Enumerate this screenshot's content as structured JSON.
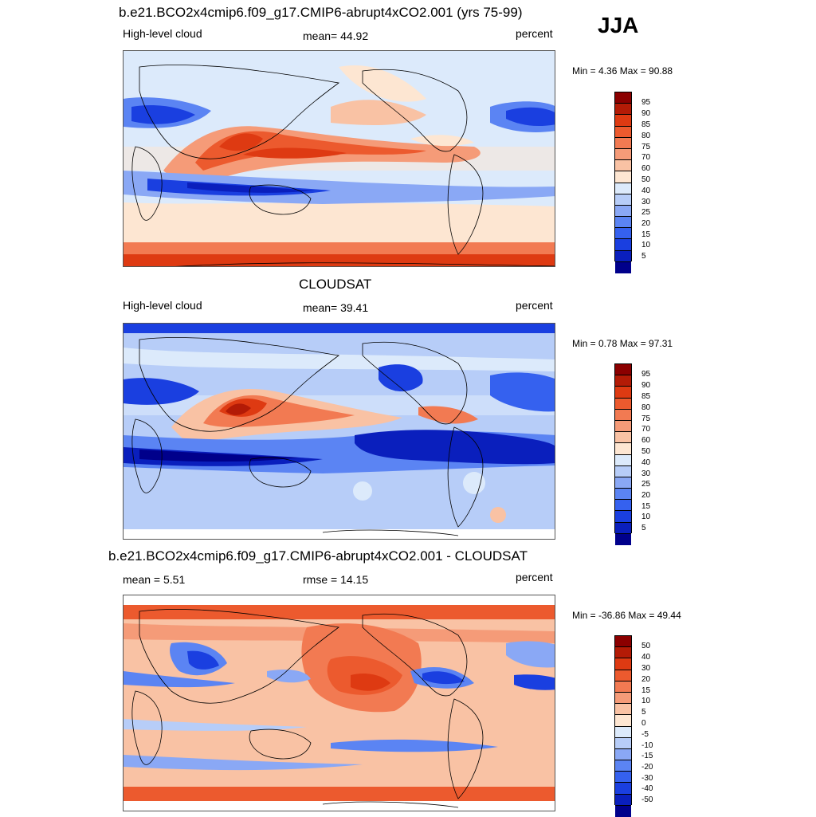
{
  "season": "JJA",
  "colors": {
    "c5": "#00008b",
    "c10": "#0a1fbd",
    "c15": "#1a3fe0",
    "c20": "#3561ef",
    "c25": "#5b84f3",
    "c30": "#8aa8f5",
    "c40": "#b7cdf8",
    "c50": "#dceafb",
    "c60": "#fde6d2",
    "c70": "#f9c2a4",
    "c75": "#f59b78",
    "c80": "#f27a52",
    "c85": "#ec5a2e",
    "c90": "#de3a12",
    "c95": "#b31b06",
    "c100": "#8b0000",
    "land_outline": "#000000"
  },
  "panels": [
    {
      "title": "b.e21.BCO2x4cmip6.f09_g17.CMIP6-abrupt4xCO2.001 (yrs 75-99)",
      "left_label": "High-level cloud",
      "center_label": "mean=  44.92",
      "right_label": "percent",
      "minmax": "Min =   4.36 Max =  90.88",
      "colorbar_labels": [
        "95",
        "90",
        "85",
        "80",
        "75",
        "70",
        "60",
        "50",
        "40",
        "30",
        "25",
        "20",
        "15",
        "10",
        "5"
      ]
    },
    {
      "title": "CLOUDSAT",
      "left_label": "High-level cloud",
      "center_label": "mean=  39.41",
      "right_label": "percent",
      "minmax": "Min =   0.78 Max =  97.31",
      "colorbar_labels": [
        "95",
        "90",
        "85",
        "80",
        "75",
        "70",
        "60",
        "50",
        "40",
        "30",
        "25",
        "20",
        "15",
        "10",
        "5"
      ]
    },
    {
      "title": "b.e21.BCO2x4cmip6.f09_g17.CMIP6-abrupt4xCO2.001 - CLOUDSAT",
      "left_label": "mean =   5.51",
      "center_label": "rmse =  14.15",
      "right_label": "percent",
      "minmax": "Min = -36.86 Max =  49.44",
      "colorbar_labels": [
        "50",
        "40",
        "30",
        "20",
        "15",
        "10",
        "5",
        "0",
        "-5",
        "-10",
        "-15",
        "-20",
        "-30",
        "-40",
        "-50"
      ]
    }
  ]
}
